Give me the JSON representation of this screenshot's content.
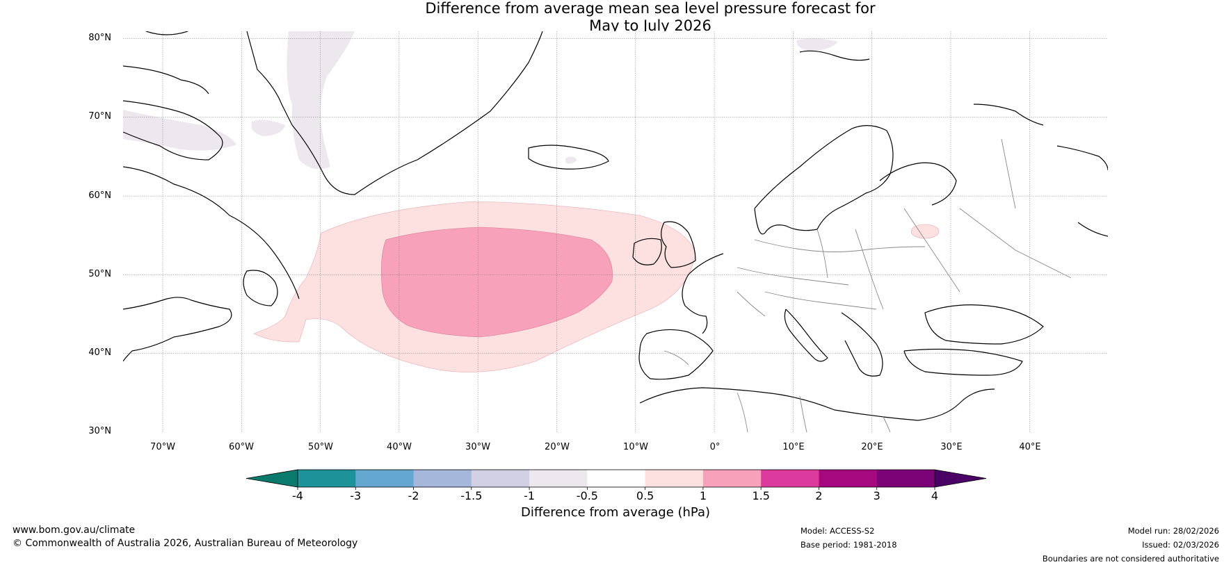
{
  "title": {
    "line1": "Difference from average mean sea level pressure forecast for",
    "line2": "May to July 2026"
  },
  "map": {
    "lat_labels": [
      "80°N",
      "70°N",
      "60°N",
      "50°N",
      "40°N",
      "30°N"
    ],
    "lon_labels": [
      "70°W",
      "60°W",
      "50°W",
      "40°W",
      "30°W",
      "20°W",
      "10°W",
      "0°",
      "10°E",
      "20°E",
      "30°E",
      "40°E"
    ],
    "lat_range": [
      30,
      81
    ],
    "lon_range": [
      -75,
      50
    ],
    "anomaly_regions": [
      {
        "name": "North Atlantic high",
        "category": "0.5 to 1 hPa",
        "color": "#fde0e0"
      },
      {
        "name": "North Atlantic core",
        "category": "1 to 1.5 hPa",
        "color": "#f8a1ba"
      },
      {
        "name": "Baltic patch",
        "category": "0.5 to 1 hPa",
        "color": "#fde0e0"
      },
      {
        "name": "Greenland low",
        "category": "-1 to -0.5 hPa",
        "color": "#ece8ee"
      }
    ]
  },
  "colorbar": {
    "label": "Difference from average (hPa)",
    "ticks": [
      "-4",
      "-3",
      "-2",
      "-1.5",
      "-1",
      "-0.5",
      "0.5",
      "1",
      "1.5",
      "2",
      "3",
      "4"
    ],
    "colors": [
      "#0a7a6c",
      "#1e9299",
      "#64a8d2",
      "#a5b8db",
      "#d1d0e5",
      "#ece8ee",
      "#ffffff",
      "#fde0e0",
      "#f8a1ba",
      "#dc3b9d",
      "#a6097f",
      "#7b0277",
      "#4b0066"
    ]
  },
  "footer": {
    "website": "www.bom.gov.au/climate",
    "copyright": "© Commonwealth of Australia 2026, Australian Bureau of Meteorology",
    "model": "Model: ACCESS-S2",
    "base_period": "Base period: 1981-2018",
    "model_run": "Model run: 28/02/2026",
    "issued": "Issued: 02/03/2026",
    "disclaimer": "Boundaries are not considered authoritative"
  }
}
